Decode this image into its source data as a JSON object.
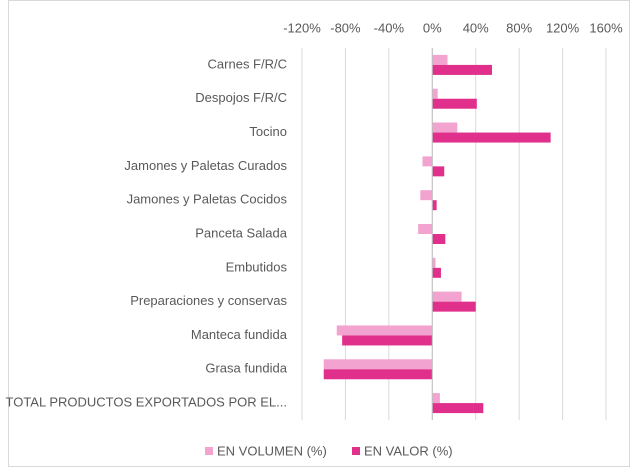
{
  "chart_data": {
    "type": "hbar",
    "categories": [
      "Carnes F/R/C",
      "Despojos F/R/C",
      "Tocino",
      "Jamones y Paletas Curados",
      "Jamones y Paletas Cocidos",
      "Panceta Salada",
      "Embutidos",
      "Preparaciones y conservas",
      "Manteca fundida",
      "Grasa fundida",
      "TOTAL PRODUCTOS EXPORTADOS POR EL..."
    ],
    "series": [
      {
        "name": "EN VOLUMEN (%)",
        "color": "#f2a3cf",
        "values": [
          14,
          5,
          23,
          -9,
          -11,
          -13,
          3,
          27,
          -88,
          -100,
          7
        ]
      },
      {
        "name": "EN VALOR (%)",
        "color": "#e0308c",
        "values": [
          55,
          41,
          109,
          11,
          4,
          12,
          8,
          40,
          -83,
          -100,
          47
        ]
      }
    ],
    "xlim": [
      -120,
      160
    ],
    "xticks": [
      {
        "value": -120,
        "label": "-120%"
      },
      {
        "value": -80,
        "label": "-80%"
      },
      {
        "value": -40,
        "label": "-40%"
      },
      {
        "value": 0,
        "label": "0%"
      },
      {
        "value": 40,
        "label": "40%"
      },
      {
        "value": 80,
        "label": "80%"
      },
      {
        "value": 120,
        "label": "120%"
      },
      {
        "value": 160,
        "label": "160%"
      }
    ],
    "grid": true,
    "legend": "bottom"
  }
}
